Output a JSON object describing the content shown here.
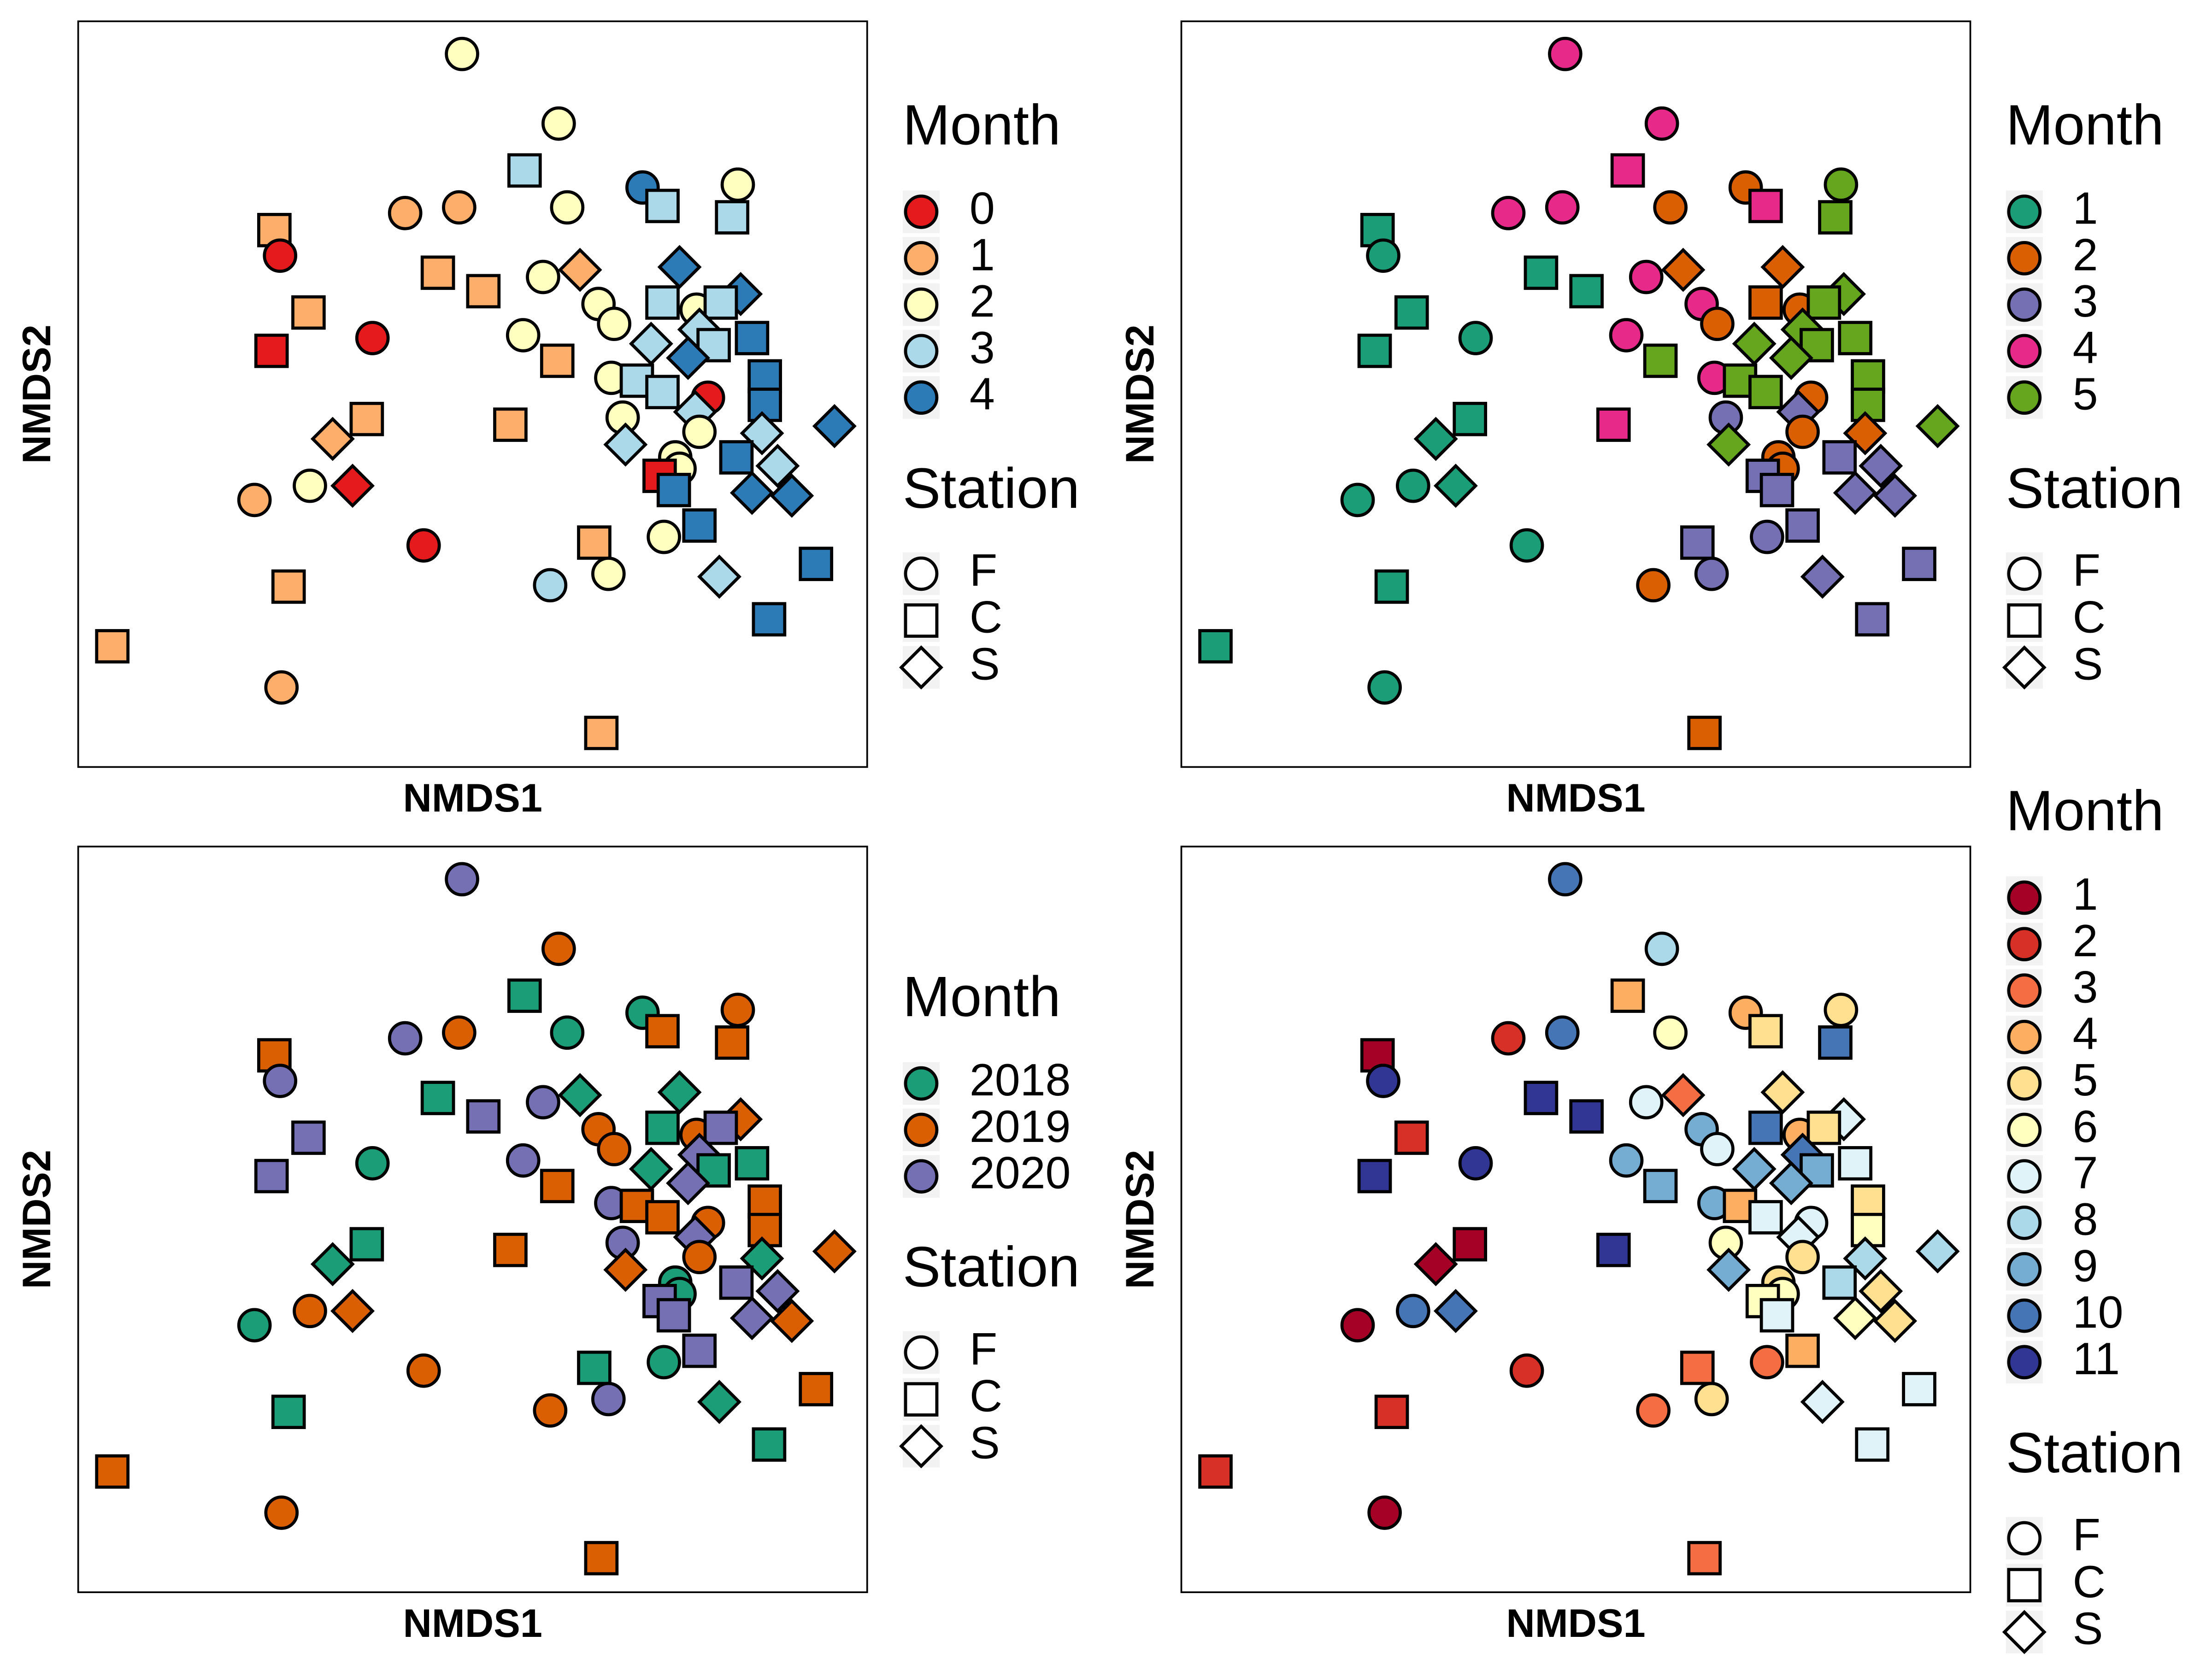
{
  "chart_data": [
    {
      "type": "scatter",
      "xlabel": "NMDS1",
      "ylabel": "NMDS2",
      "xlim": [
        0,
        555
      ],
      "ylim": [
        0,
        525
      ],
      "color_legend": {
        "title": "Month",
        "labels": [
          "0",
          "1",
          "2",
          "3",
          "4"
        ],
        "colors": [
          "#e41a1c",
          "#fdae6b",
          "#ffffbf",
          "#abd9e9",
          "#2c7bb6"
        ]
      },
      "shape_legend": {
        "title": "Station",
        "labels": [
          "F",
          "C",
          "S"
        ]
      },
      "x": [
        270,
        338,
        314,
        344,
        397,
        411,
        464,
        460,
        138,
        230,
        268,
        142,
        253,
        285,
        327,
        353,
        423,
        466,
        162,
        207,
        136,
        313,
        337,
        366,
        377,
        411,
        435,
        452,
        403,
        437,
        447,
        474,
        429,
        375,
        393,
        411,
        443,
        483,
        483,
        434,
        437,
        383,
        203,
        179,
        304,
        385,
        481,
        532,
        420,
        423,
        409,
        463,
        492,
        419,
        474,
        502,
        163,
        193,
        124,
        243,
        437,
        412,
        363,
        332,
        373,
        451,
        519,
        148,
        486,
        24,
        143,
        368
      ],
      "y": [
        502,
        453,
        420,
        394,
        408,
        395,
        410,
        387,
        378,
        390,
        394,
        360,
        348,
        335,
        345,
        350,
        352,
        333,
        320,
        302,
        293,
        304,
        286,
        326,
        312,
        327,
        322,
        327,
        298,
        308,
        297,
        302,
        288,
        274,
        272,
        264,
        260,
        275,
        255,
        250,
        236,
        246,
        245,
        231,
        241,
        227,
        235,
        240,
        218,
        210,
        205,
        218,
        212,
        195,
        193,
        191,
        198,
        198,
        188,
        156,
        170,
        162,
        158,
        128,
        136,
        134,
        143,
        127,
        104,
        85,
        56,
        24
      ],
      "station": [
        "F",
        "F",
        "C",
        "F",
        "F",
        "C",
        "F",
        "C",
        "C",
        "F",
        "F",
        "F",
        "C",
        "C",
        "F",
        "S",
        "S",
        "S",
        "C",
        "F",
        "C",
        "F",
        "C",
        "F",
        "F",
        "C",
        "F",
        "C",
        "S",
        "S",
        "C",
        "C",
        "S",
        "F",
        "C",
        "C",
        "F",
        "C",
        "C",
        "S",
        "F",
        "F",
        "C",
        "S",
        "C",
        "S",
        "S",
        "S",
        "F",
        "F",
        "C",
        "C",
        "S",
        "C",
        "S",
        "S",
        "F",
        "S",
        "F",
        "F",
        "C",
        "F",
        "C",
        "F",
        "F",
        "S",
        "C",
        "C",
        "C",
        "C",
        "F",
        "C"
      ],
      "month": [
        "2",
        "2",
        "3",
        "2",
        "4",
        "3",
        "2",
        "3",
        "1",
        "1",
        "1",
        "0",
        "1",
        "1",
        "2",
        "1",
        "4",
        "4",
        "1",
        "0",
        "0",
        "2",
        "1",
        "2",
        "2",
        "3",
        "2",
        "3",
        "3",
        "3",
        "3",
        "4",
        "4",
        "2",
        "3",
        "3",
        "0",
        "4",
        "4",
        "3",
        "2",
        "2",
        "1",
        "1",
        "1",
        "3",
        "3",
        "4",
        "2",
        "2",
        "0",
        "4",
        "3",
        "4",
        "4",
        "4",
        "2",
        "0",
        "1",
        "0",
        "4",
        "2",
        "1",
        "3",
        "2",
        "3",
        "4",
        "1",
        "4",
        "1",
        "1",
        "1"
      ]
    },
    {
      "type": "scatter",
      "xlabel": "NMDS1",
      "ylabel": "NMDS2",
      "xlim": [
        0,
        555
      ],
      "ylim": [
        0,
        525
      ],
      "color_legend": {
        "title": "Month",
        "labels": [
          "1",
          "2",
          "3",
          "4",
          "5"
        ],
        "colors": [
          "#1b9e77",
          "#d95f02",
          "#7570b3",
          "#e7298a",
          "#66a61e"
        ]
      },
      "shape_legend": {
        "title": "Station",
        "labels": [
          "F",
          "C",
          "S"
        ]
      },
      "x": [
        270,
        338,
        314,
        344,
        397,
        411,
        464,
        460,
        138,
        230,
        268,
        142,
        253,
        285,
        327,
        353,
        423,
        466,
        162,
        207,
        136,
        313,
        337,
        366,
        377,
        411,
        435,
        452,
        403,
        437,
        447,
        474,
        429,
        375,
        393,
        411,
        443,
        483,
        483,
        434,
        437,
        383,
        203,
        179,
        304,
        385,
        481,
        532,
        420,
        423,
        409,
        463,
        492,
        419,
        474,
        502,
        163,
        193,
        124,
        243,
        437,
        412,
        363,
        332,
        373,
        451,
        519,
        148,
        486,
        24,
        143,
        368
      ],
      "y": [
        502,
        453,
        420,
        394,
        408,
        395,
        410,
        387,
        378,
        390,
        394,
        360,
        348,
        335,
        345,
        350,
        352,
        333,
        320,
        302,
        293,
        304,
        286,
        326,
        312,
        327,
        322,
        327,
        298,
        308,
        297,
        302,
        288,
        274,
        272,
        264,
        260,
        275,
        255,
        250,
        236,
        246,
        245,
        231,
        241,
        227,
        235,
        240,
        218,
        210,
        205,
        218,
        212,
        195,
        193,
        191,
        198,
        198,
        188,
        156,
        170,
        162,
        158,
        128,
        136,
        134,
        143,
        127,
        104,
        85,
        56,
        24
      ],
      "station": [
        "F",
        "F",
        "C",
        "F",
        "F",
        "C",
        "F",
        "C",
        "C",
        "F",
        "F",
        "F",
        "C",
        "C",
        "F",
        "S",
        "S",
        "S",
        "C",
        "F",
        "C",
        "F",
        "C",
        "F",
        "F",
        "C",
        "F",
        "C",
        "S",
        "S",
        "C",
        "C",
        "S",
        "F",
        "C",
        "C",
        "F",
        "C",
        "C",
        "S",
        "F",
        "F",
        "C",
        "S",
        "C",
        "S",
        "S",
        "S",
        "F",
        "F",
        "C",
        "C",
        "S",
        "C",
        "S",
        "S",
        "F",
        "S",
        "F",
        "F",
        "C",
        "F",
        "C",
        "F",
        "F",
        "S",
        "C",
        "C",
        "C",
        "C",
        "F",
        "C"
      ],
      "month": [
        "4",
        "4",
        "4",
        "2",
        "2",
        "4",
        "5",
        "5",
        "1",
        "4",
        "4",
        "1",
        "1",
        "1",
        "4",
        "2",
        "2",
        "5",
        "1",
        "1",
        "1",
        "4",
        "5",
        "4",
        "2",
        "2",
        "2",
        "5",
        "5",
        "5",
        "5",
        "5",
        "5",
        "4",
        "5",
        "5",
        "2",
        "5",
        "5",
        "3",
        "2",
        "3",
        "1",
        "1",
        "4",
        "5",
        "2",
        "5",
        "2",
        "2",
        "3",
        "3",
        "3",
        "3",
        "3",
        "3",
        "1",
        "1",
        "1",
        "1",
        "3",
        "3",
        "3",
        "2",
        "3",
        "3",
        "3",
        "1",
        "3",
        "1",
        "1",
        "2"
      ]
    },
    {
      "type": "scatter",
      "xlabel": "NMDS1",
      "ylabel": "NMDS2",
      "xlim": [
        0,
        555
      ],
      "ylim": [
        0,
        525
      ],
      "color_legend": {
        "title": "Month",
        "labels": [
          "2018",
          "2019",
          "2020"
        ],
        "colors": [
          "#1b9e77",
          "#d95f02",
          "#7570b3"
        ]
      },
      "shape_legend": {
        "title": "Station",
        "labels": [
          "F",
          "C",
          "S"
        ]
      },
      "x": [
        270,
        338,
        314,
        344,
        397,
        411,
        464,
        460,
        138,
        230,
        268,
        142,
        253,
        285,
        327,
        353,
        423,
        466,
        162,
        207,
        136,
        313,
        337,
        366,
        377,
        411,
        435,
        452,
        403,
        437,
        447,
        474,
        429,
        375,
        393,
        411,
        443,
        483,
        483,
        434,
        437,
        383,
        203,
        179,
        304,
        385,
        481,
        532,
        420,
        423,
        409,
        463,
        492,
        419,
        474,
        502,
        163,
        193,
        124,
        243,
        437,
        412,
        363,
        332,
        373,
        451,
        519,
        148,
        486,
        24,
        143,
        368
      ],
      "y": [
        502,
        453,
        420,
        394,
        408,
        395,
        410,
        387,
        378,
        390,
        394,
        360,
        348,
        335,
        345,
        350,
        352,
        333,
        320,
        302,
        293,
        304,
        286,
        326,
        312,
        327,
        322,
        327,
        298,
        308,
        297,
        302,
        288,
        274,
        272,
        264,
        260,
        275,
        255,
        250,
        236,
        246,
        245,
        231,
        241,
        227,
        235,
        240,
        218,
        210,
        205,
        218,
        212,
        195,
        193,
        191,
        198,
        198,
        188,
        156,
        170,
        162,
        158,
        128,
        136,
        134,
        143,
        127,
        104,
        85,
        56,
        24
      ],
      "station": [
        "F",
        "F",
        "C",
        "F",
        "F",
        "C",
        "F",
        "C",
        "C",
        "F",
        "F",
        "F",
        "C",
        "C",
        "F",
        "S",
        "S",
        "S",
        "C",
        "F",
        "C",
        "F",
        "C",
        "F",
        "F",
        "C",
        "F",
        "C",
        "S",
        "S",
        "C",
        "C",
        "S",
        "F",
        "C",
        "C",
        "F",
        "C",
        "C",
        "S",
        "F",
        "F",
        "C",
        "S",
        "C",
        "S",
        "S",
        "S",
        "F",
        "F",
        "C",
        "C",
        "S",
        "C",
        "S",
        "S",
        "F",
        "S",
        "F",
        "F",
        "C",
        "F",
        "C",
        "F",
        "F",
        "S",
        "C",
        "C",
        "C",
        "C",
        "F",
        "C"
      ],
      "month": [
        "2020",
        "2019",
        "2018",
        "2018",
        "2018",
        "2019",
        "2019",
        "2019",
        "2019",
        "2020",
        "2019",
        "2020",
        "2018",
        "2020",
        "2020",
        "2018",
        "2018",
        "2019",
        "2020",
        "2018",
        "2020",
        "2020",
        "2019",
        "2019",
        "2019",
        "2018",
        "2019",
        "2020",
        "2018",
        "2020",
        "2018",
        "2018",
        "2020",
        "2020",
        "2019",
        "2019",
        "2019",
        "2019",
        "2019",
        "2020",
        "2019",
        "2020",
        "2018",
        "2018",
        "2019",
        "2019",
        "2018",
        "2019",
        "2018",
        "2018",
        "2020",
        "2020",
        "2020",
        "2020",
        "2020",
        "2019",
        "2019",
        "2019",
        "2018",
        "2019",
        "2020",
        "2018",
        "2018",
        "2019",
        "2020",
        "2018",
        "2019",
        "2018",
        "2018",
        "2019",
        "2019",
        "2019"
      ]
    },
    {
      "type": "scatter",
      "xlabel": "NMDS1",
      "ylabel": "NMDS2",
      "xlim": [
        0,
        555
      ],
      "ylim": [
        0,
        525
      ],
      "color_legend": {
        "title": "Month",
        "labels": [
          "1",
          "2",
          "3",
          "4",
          "5",
          "6",
          "7",
          "8",
          "9",
          "10",
          "11"
        ],
        "colors": [
          "#a50026",
          "#d73027",
          "#f46d43",
          "#fdae61",
          "#fee090",
          "#ffffbf",
          "#e0f3f8",
          "#abd9e9",
          "#74add1",
          "#4575b4",
          "#313695"
        ]
      },
      "shape_legend": {
        "title": "Station",
        "labels": [
          "F",
          "C",
          "S"
        ]
      },
      "x": [
        270,
        338,
        314,
        344,
        397,
        411,
        464,
        460,
        138,
        230,
        268,
        142,
        253,
        285,
        327,
        353,
        423,
        466,
        162,
        207,
        136,
        313,
        337,
        366,
        377,
        411,
        435,
        452,
        403,
        437,
        447,
        474,
        429,
        375,
        393,
        411,
        443,
        483,
        483,
        434,
        437,
        383,
        203,
        179,
        304,
        385,
        481,
        532,
        420,
        423,
        409,
        463,
        492,
        419,
        474,
        502,
        163,
        193,
        124,
        243,
        437,
        412,
        363,
        332,
        373,
        451,
        519,
        148,
        486,
        24,
        143,
        368
      ],
      "y": [
        502,
        453,
        420,
        394,
        408,
        395,
        410,
        387,
        378,
        390,
        394,
        360,
        348,
        335,
        345,
        350,
        352,
        333,
        320,
        302,
        293,
        304,
        286,
        326,
        312,
        327,
        322,
        327,
        298,
        308,
        297,
        302,
        288,
        274,
        272,
        264,
        260,
        275,
        255,
        250,
        236,
        246,
        245,
        231,
        241,
        227,
        235,
        240,
        218,
        210,
        205,
        218,
        212,
        195,
        193,
        191,
        198,
        198,
        188,
        156,
        170,
        162,
        158,
        128,
        136,
        134,
        143,
        127,
        104,
        85,
        56,
        24
      ],
      "station": [
        "F",
        "F",
        "C",
        "F",
        "F",
        "C",
        "F",
        "C",
        "C",
        "F",
        "F",
        "F",
        "C",
        "C",
        "F",
        "S",
        "S",
        "S",
        "C",
        "F",
        "C",
        "F",
        "C",
        "F",
        "F",
        "C",
        "F",
        "C",
        "S",
        "S",
        "C",
        "C",
        "S",
        "F",
        "C",
        "C",
        "F",
        "C",
        "C",
        "S",
        "F",
        "F",
        "C",
        "S",
        "C",
        "S",
        "S",
        "S",
        "F",
        "F",
        "C",
        "C",
        "S",
        "C",
        "S",
        "S",
        "F",
        "S",
        "F",
        "F",
        "C",
        "F",
        "C",
        "F",
        "F",
        "S",
        "C",
        "C",
        "C",
        "C",
        "F",
        "C"
      ],
      "month": [
        "10",
        "8",
        "4",
        "6",
        "4",
        "5",
        "5",
        "10",
        "1",
        "2",
        "10",
        "11",
        "11",
        "11",
        "7",
        "3",
        "5",
        "7",
        "2",
        "11",
        "11",
        "9",
        "9",
        "9",
        "7",
        "10",
        "4",
        "5",
        "9",
        "10",
        "9",
        "7",
        "9",
        "9",
        "4",
        "7",
        "7",
        "5",
        "6",
        "7",
        "5",
        "6",
        "1",
        "1",
        "11",
        "9",
        "8",
        "8",
        "5",
        "6",
        "6",
        "8",
        "5",
        "7",
        "6",
        "5",
        "10",
        "10",
        "1",
        "2",
        "4",
        "3",
        "3",
        "3",
        "5",
        "7",
        "7",
        "2",
        "7",
        "2",
        "1",
        "3"
      ]
    }
  ]
}
